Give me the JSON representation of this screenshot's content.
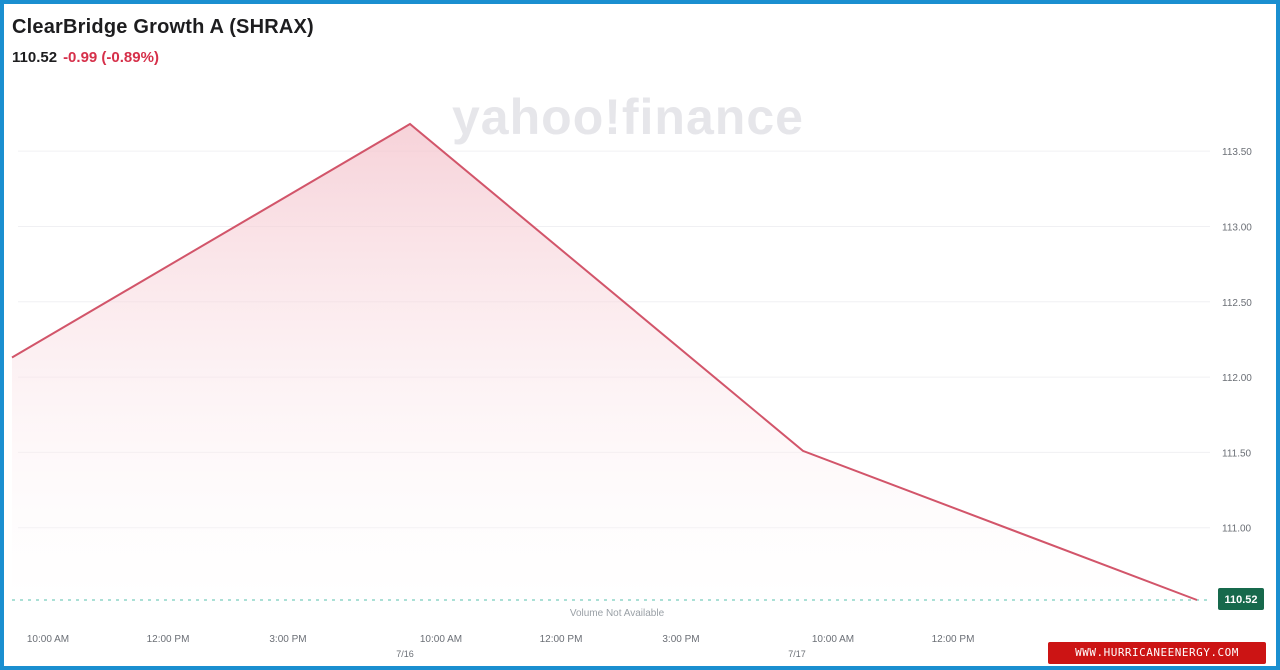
{
  "header": {
    "title": "ClearBridge Growth A (SHRAX)",
    "price": "110.52",
    "change": "-0.99 (-0.89%)"
  },
  "watermark": "yahoo!finance",
  "site_badge": "WWW.HURRICANEENERGY.COM",
  "colors": {
    "line": "#d2556a",
    "fill_top": "#f4c3cc",
    "current_badge": "#17694c",
    "baseline": "#8fd6c8",
    "frame": "#1a8fd0",
    "change_text": "#d6304a"
  },
  "chart_data": {
    "type": "area",
    "title": "",
    "x": [
      "start",
      "7/16 10:00 AM",
      "7/17 10:00 AM",
      "end"
    ],
    "series": [
      {
        "values": [
          112.13,
          113.68,
          111.51,
          110.52
        ]
      }
    ],
    "ylim": [
      110.52,
      113.72
    ],
    "y_ticks": [
      "113.50",
      "113.00",
      "112.50",
      "112.00",
      "111.50",
      "111.00"
    ],
    "x_ticks": [
      "10:00 AM",
      "12:00 PM",
      "3:00 PM",
      "10:00 AM",
      "12:00 PM",
      "3:00 PM",
      "10:00 AM",
      "12:00 PM"
    ],
    "date_labels": [
      "7/16",
      "7/17"
    ],
    "current_value_label": "110.52",
    "volume_note": "Volume Not Available",
    "grid": true,
    "axis_side": "right"
  }
}
